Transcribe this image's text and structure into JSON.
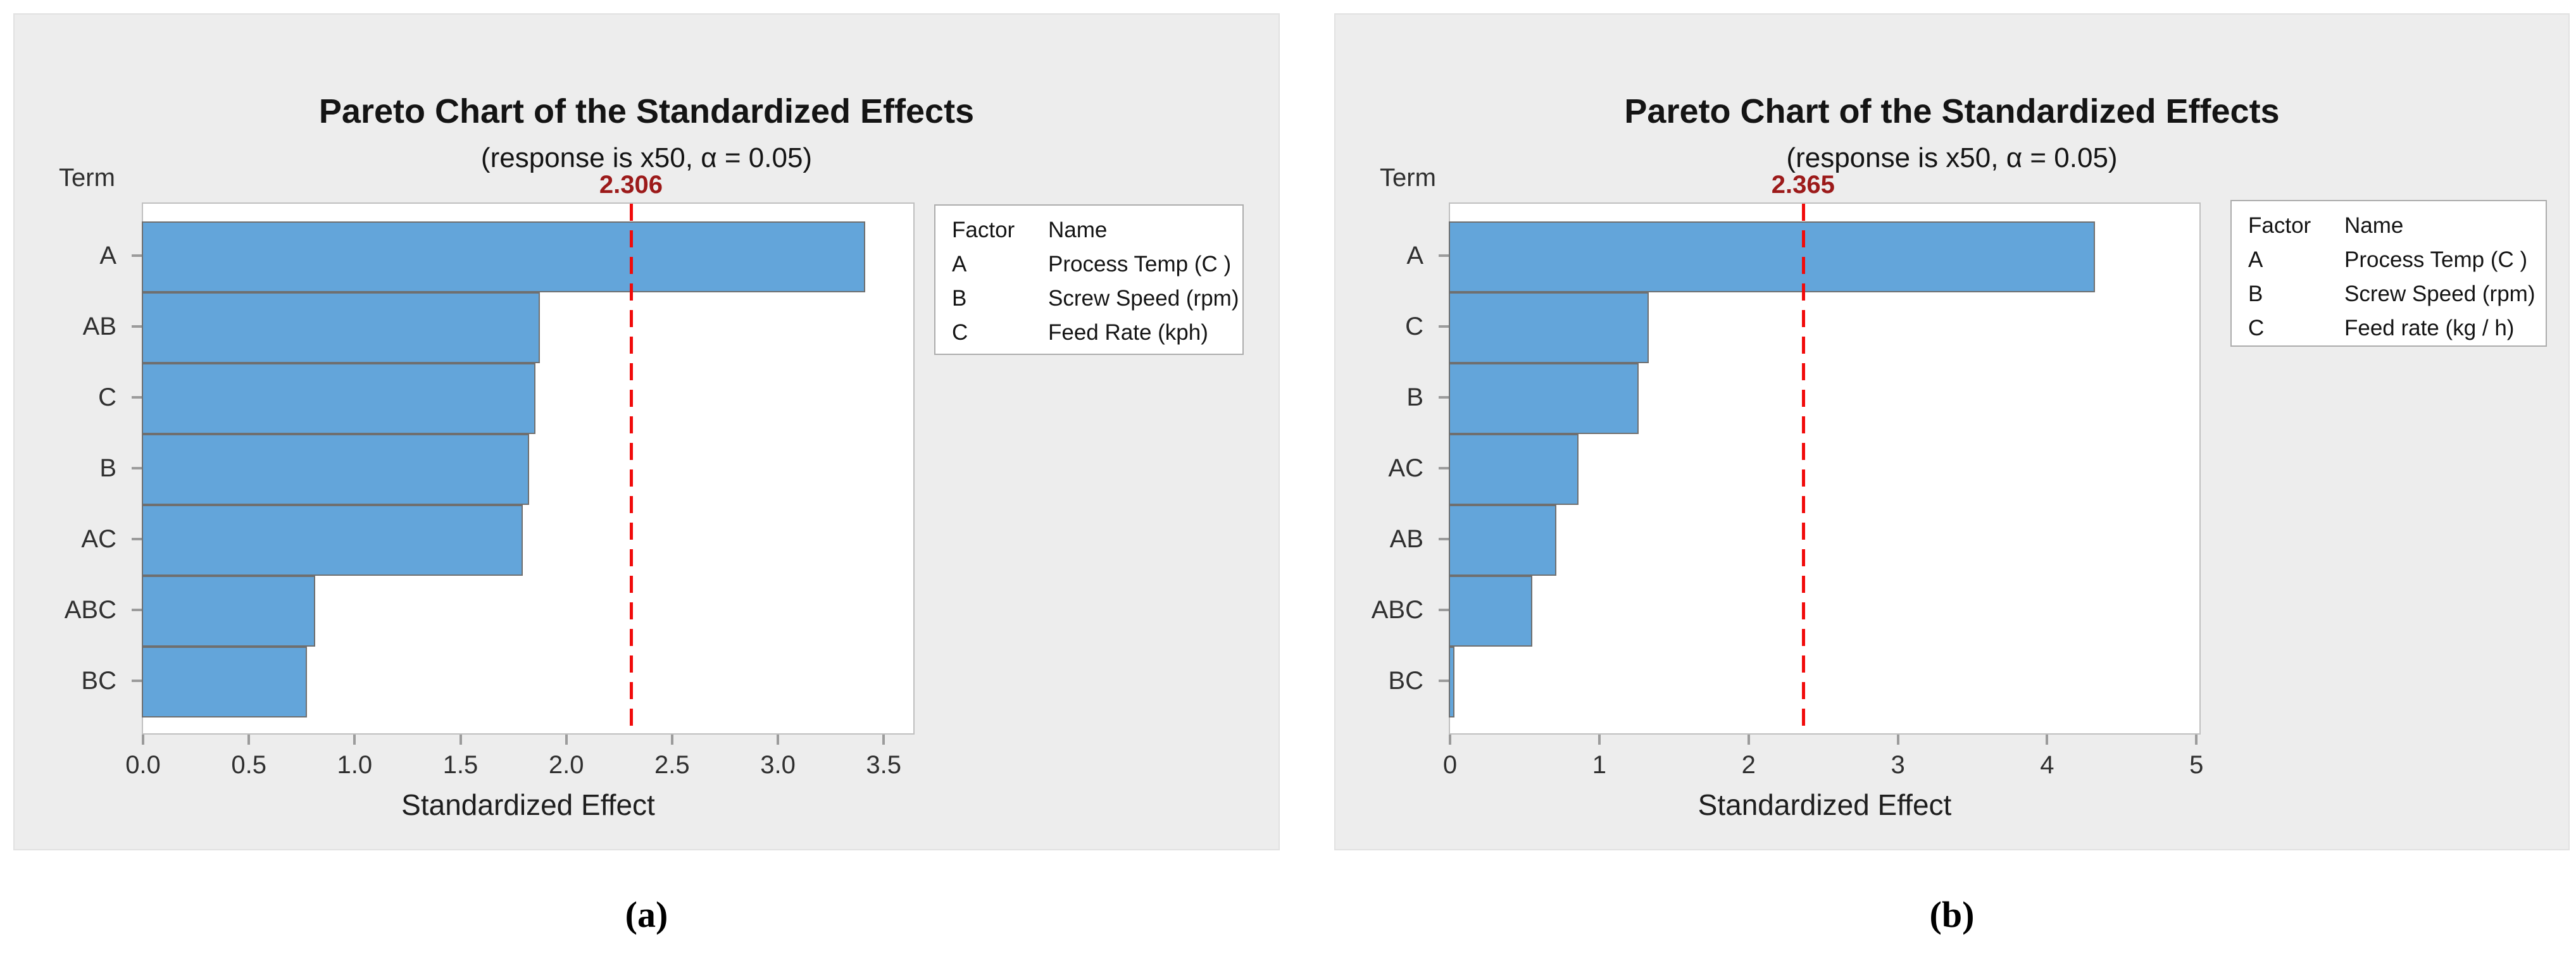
{
  "figure_captions": {
    "a": "(a)",
    "b": "(b)"
  },
  "colors": {
    "panel_bg": "#EDEDED",
    "bar_fill": "#63A5DA",
    "bar_border": "#6F6F6F",
    "reference_line": "#F10B0B",
    "reference_label": "#9C1A1A"
  },
  "chart_data": [
    {
      "id": "a",
      "type": "bar",
      "orientation": "horizontal",
      "title": "Pareto Chart of the Standardized Effects",
      "subtitle": "(response is x50, α = 0.05)",
      "y_axis_header": "Term",
      "xlabel": "Standardized Effect",
      "categories": [
        "A",
        "AB",
        "C",
        "B",
        "AC",
        "ABC",
        "BC"
      ],
      "values": [
        3.42,
        1.88,
        1.86,
        1.83,
        1.8,
        0.82,
        0.78
      ],
      "reference_line": {
        "value": 2.306,
        "label": "2.306"
      },
      "xlim": [
        0,
        3.64
      ],
      "x_ticks": [
        {
          "value": 0.0,
          "label": "0.0"
        },
        {
          "value": 0.5,
          "label": "0.5"
        },
        {
          "value": 1.0,
          "label": "1.0"
        },
        {
          "value": 1.5,
          "label": "1.5"
        },
        {
          "value": 2.0,
          "label": "2.0"
        },
        {
          "value": 2.5,
          "label": "2.5"
        },
        {
          "value": 3.0,
          "label": "3.0"
        },
        {
          "value": 3.5,
          "label": "3.5"
        }
      ],
      "legend": {
        "headers": [
          "Factor",
          "Name"
        ],
        "rows": [
          {
            "factor": "A",
            "name": "Process Temp (C )"
          },
          {
            "factor": "B",
            "name": "Screw Speed (rpm)"
          },
          {
            "factor": "C",
            "name": "Feed Rate (kph)"
          }
        ]
      }
    },
    {
      "id": "b",
      "type": "bar",
      "orientation": "horizontal",
      "title": "Pareto Chart of the Standardized Effects",
      "subtitle": "(response is x50, α = 0.05)",
      "y_axis_header": "Term",
      "xlabel": "Standardized Effect",
      "categories": [
        "A",
        "C",
        "B",
        "AC",
        "AB",
        "ABC",
        "BC"
      ],
      "values": [
        4.33,
        1.34,
        1.27,
        0.87,
        0.72,
        0.56,
        0.04
      ],
      "reference_line": {
        "value": 2.365,
        "label": "2.365"
      },
      "xlim": [
        0,
        5.02
      ],
      "x_ticks": [
        {
          "value": 0,
          "label": "0"
        },
        {
          "value": 1,
          "label": "1"
        },
        {
          "value": 2,
          "label": "2"
        },
        {
          "value": 3,
          "label": "3"
        },
        {
          "value": 4,
          "label": "4"
        },
        {
          "value": 5,
          "label": "5"
        }
      ],
      "legend": {
        "headers": [
          "Factor",
          "Name"
        ],
        "rows": [
          {
            "factor": "A",
            "name": "Process Temp (C )"
          },
          {
            "factor": "B",
            "name": "Screw Speed (rpm)"
          },
          {
            "factor": "C",
            "name": "Feed rate (kg / h)"
          }
        ]
      }
    }
  ]
}
